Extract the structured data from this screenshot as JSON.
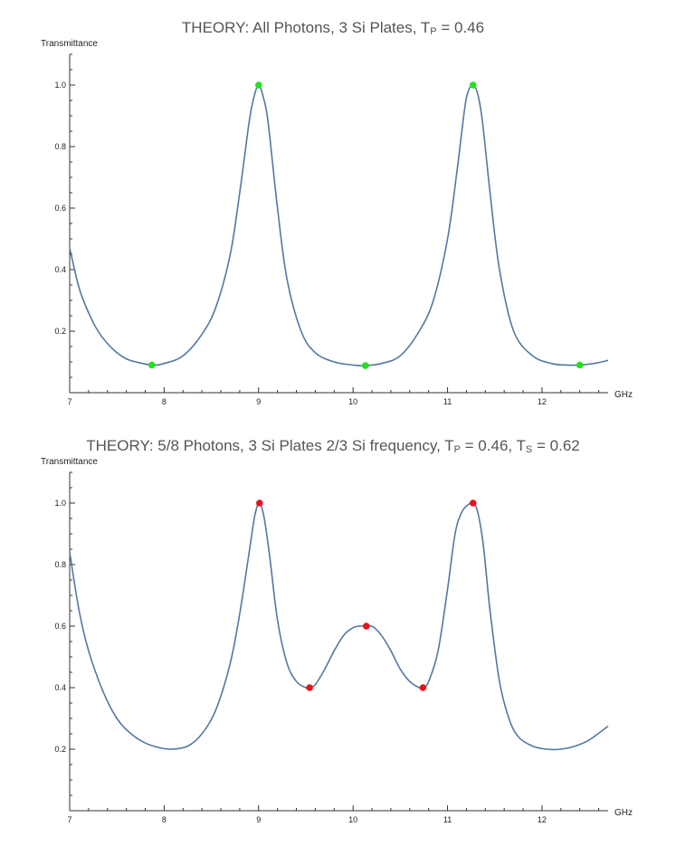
{
  "chart_data": [
    {
      "type": "line",
      "title": {
        "prefix": "THEORY: All Photons, 3 Si Plates,  T",
        "sub1": "P",
        "mid": " = 0.46",
        "sub2": "",
        "suffix": ""
      },
      "ylabel": "Transmittance",
      "xlabel": "GHz",
      "xlim": [
        7,
        12.7
      ],
      "ylim": [
        0,
        1.1
      ],
      "x_ticks": [
        7,
        8,
        9,
        10,
        11,
        12
      ],
      "y_ticks": [
        0.2,
        0.4,
        0.6,
        0.8,
        1.0
      ],
      "y_tick_labels": [
        "0.2",
        "0.4",
        "0.6",
        "0.8",
        "1.0"
      ],
      "line_color": "#5478a3",
      "marker_color": "#22e01f",
      "series": [
        {
          "x": [
            7.0,
            7.1,
            7.2,
            7.3,
            7.4,
            7.5,
            7.6,
            7.7,
            7.87,
            8.0,
            8.2,
            8.4,
            8.55,
            8.7,
            8.8,
            8.9,
            8.95,
            9.0,
            9.05,
            9.1,
            9.2,
            9.3,
            9.45,
            9.6,
            9.8,
            10.0,
            10.13,
            10.3,
            10.5,
            10.7,
            10.85,
            11.0,
            11.1,
            11.18,
            11.22,
            11.27,
            11.32,
            11.37,
            11.45,
            11.55,
            11.7,
            11.9,
            12.1,
            12.25,
            12.4,
            12.55,
            12.7
          ],
          "y": [
            0.47,
            0.34,
            0.26,
            0.2,
            0.16,
            0.13,
            0.11,
            0.1,
            0.09,
            0.095,
            0.12,
            0.19,
            0.28,
            0.45,
            0.65,
            0.88,
            0.96,
            1.0,
            0.96,
            0.88,
            0.6,
            0.37,
            0.2,
            0.13,
            0.1,
            0.09,
            0.088,
            0.095,
            0.12,
            0.2,
            0.3,
            0.5,
            0.72,
            0.92,
            0.98,
            1.0,
            0.97,
            0.88,
            0.65,
            0.4,
            0.2,
            0.12,
            0.095,
            0.09,
            0.09,
            0.095,
            0.105
          ]
        }
      ],
      "points": {
        "x": [
          7.87,
          9.0,
          10.13,
          11.27,
          12.4
        ],
        "y": [
          0.09,
          1.0,
          0.088,
          1.0,
          0.09
        ]
      }
    },
    {
      "type": "line",
      "title": {
        "prefix": "THEORY: 5/8 Photons, 3 Si Plates 2/3 Si frequency,  T",
        "sub1": "P",
        "mid": " = 0.46, T",
        "sub2": "S",
        "suffix": " = 0.62"
      },
      "ylabel": "Transmittance",
      "xlabel": "GHz",
      "xlim": [
        7,
        12.7
      ],
      "ylim": [
        0,
        1.1
      ],
      "x_ticks": [
        7,
        8,
        9,
        10,
        11,
        12
      ],
      "y_ticks": [
        0.2,
        0.4,
        0.6,
        0.8,
        1.0
      ],
      "y_tick_labels": [
        "0.2",
        "0.4",
        "0.6",
        "0.8",
        "1.0"
      ],
      "line_color": "#5478a3",
      "marker_color": "#e8121b",
      "series": [
        {
          "x": [
            7.0,
            7.1,
            7.2,
            7.35,
            7.5,
            7.65,
            7.8,
            7.95,
            8.08,
            8.25,
            8.4,
            8.55,
            8.7,
            8.8,
            8.9,
            8.96,
            9.01,
            9.06,
            9.12,
            9.2,
            9.3,
            9.4,
            9.5,
            9.54,
            9.6,
            9.7,
            9.8,
            9.9,
            10.0,
            10.07,
            10.14,
            10.21,
            10.3,
            10.4,
            10.5,
            10.6,
            10.7,
            10.74,
            10.8,
            10.9,
            11.0,
            11.08,
            11.15,
            11.22,
            11.27,
            11.32,
            11.38,
            11.45,
            11.55,
            11.65,
            11.75,
            11.9,
            12.05,
            12.2,
            12.35,
            12.5,
            12.7
          ],
          "y": [
            0.84,
            0.65,
            0.52,
            0.39,
            0.3,
            0.25,
            0.22,
            0.205,
            0.2,
            0.21,
            0.25,
            0.33,
            0.48,
            0.64,
            0.84,
            0.96,
            1.0,
            0.95,
            0.82,
            0.62,
            0.48,
            0.42,
            0.4,
            0.4,
            0.41,
            0.46,
            0.52,
            0.57,
            0.595,
            0.6,
            0.6,
            0.598,
            0.57,
            0.52,
            0.46,
            0.42,
            0.4,
            0.4,
            0.42,
            0.52,
            0.72,
            0.9,
            0.97,
            0.995,
            1.0,
            0.97,
            0.86,
            0.65,
            0.42,
            0.3,
            0.24,
            0.21,
            0.2,
            0.2,
            0.21,
            0.23,
            0.275
          ]
        }
      ],
      "points": {
        "x": [
          9.01,
          9.54,
          10.14,
          10.74,
          11.27
        ],
        "y": [
          1.0,
          0.4,
          0.6,
          0.4,
          1.0
        ]
      }
    }
  ]
}
